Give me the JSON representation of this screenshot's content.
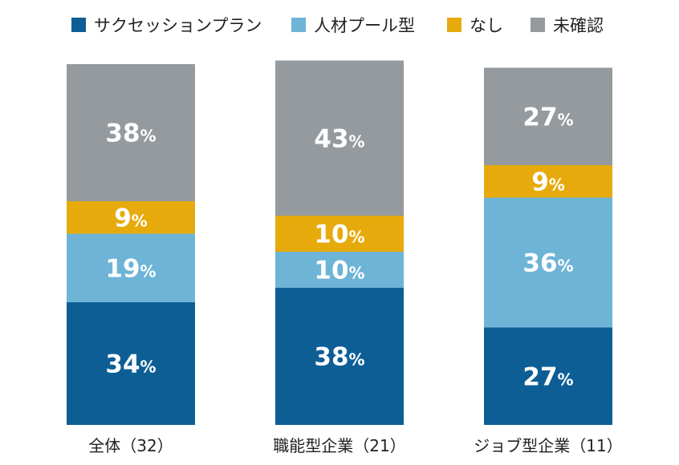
{
  "chart_data": {
    "type": "bar",
    "stacked": true,
    "orientation": "vertical",
    "categories": [
      "全体（32）",
      "職能型企業（21）",
      "ジョブ型企業（11）"
    ],
    "series": [
      {
        "name": "サクセッションプラン",
        "color": "#0e5e96",
        "values": [
          34,
          38,
          27
        ]
      },
      {
        "name": "人材プール型",
        "color": "#6db4d6",
        "values": [
          19,
          10,
          36
        ]
      },
      {
        "name": "なし",
        "color": "#e7aa0c",
        "values": [
          9,
          10,
          9
        ]
      },
      {
        "name": "未確認",
        "color": "#959a9e",
        "values": [
          38,
          43,
          27
        ]
      }
    ],
    "value_suffix": "%",
    "ylim": [
      0,
      100
    ],
    "legend_position": "top",
    "grid": false
  }
}
